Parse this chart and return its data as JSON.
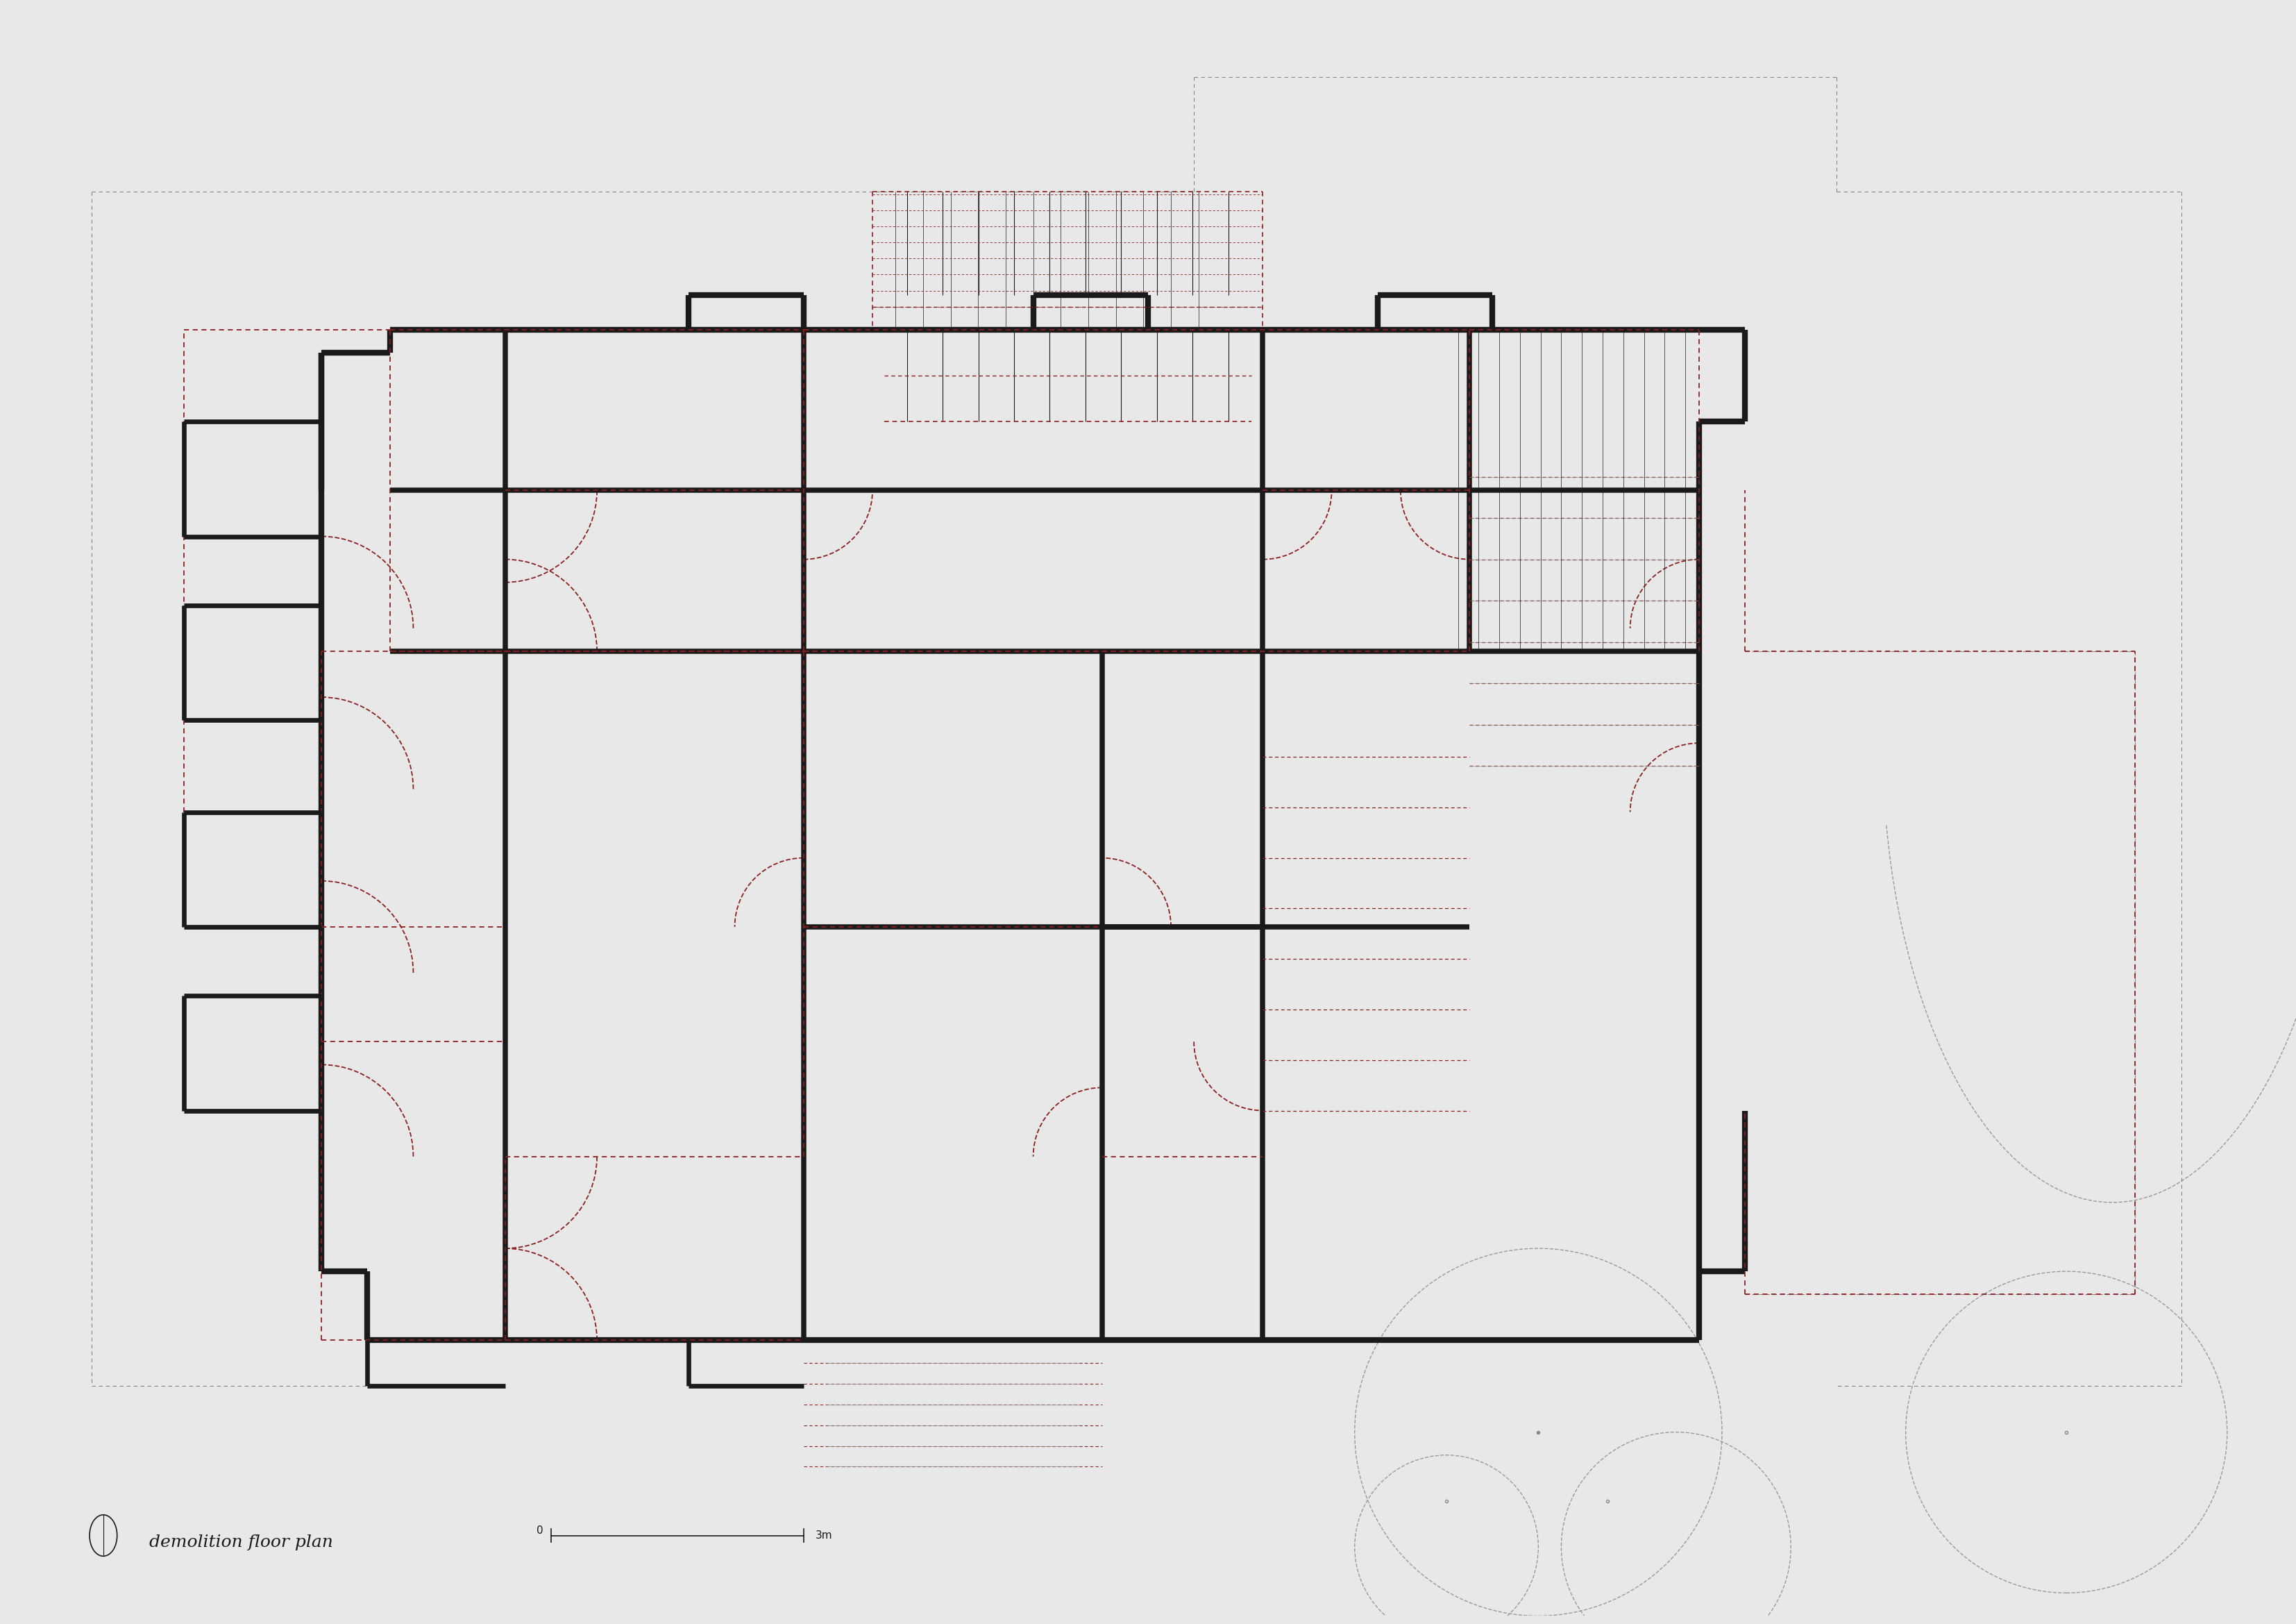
{
  "background_color": "#e8e8e8",
  "wall_color": "#1a1a1a",
  "wall_linewidth": 6,
  "red_dash_color": "#8B2020",
  "gray_dash_color": "#888888",
  "light_gray_dash": "#aaaaaa",
  "title": "demolition floor plan",
  "title_fontsize": 18,
  "scale_label": "3m",
  "scale_0": "0"
}
